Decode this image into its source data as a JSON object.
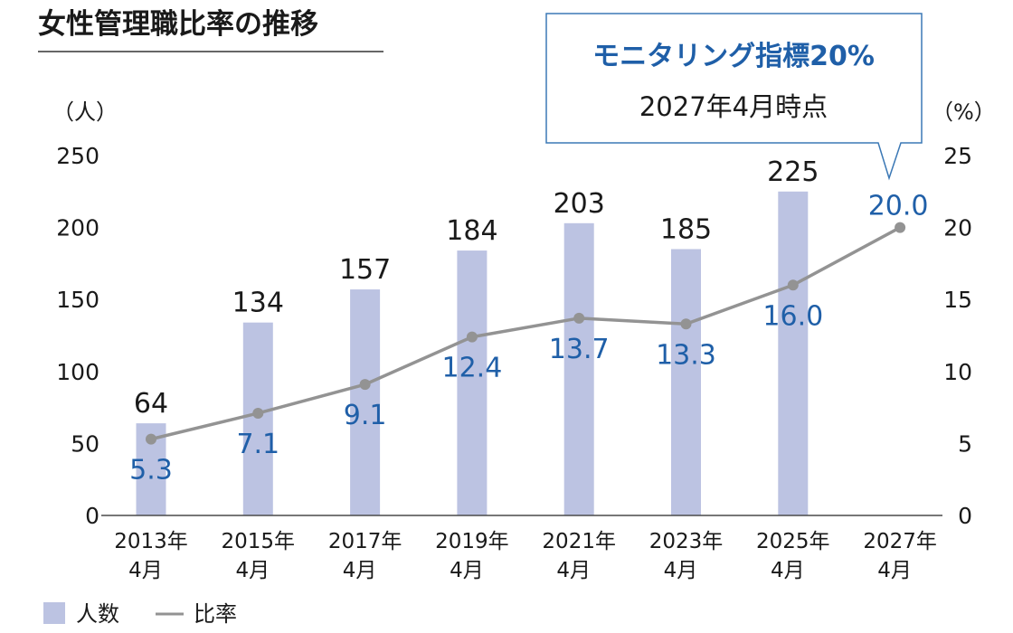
{
  "chart_data": {
    "type": "bar",
    "title": "女性管理職比率の推移",
    "categories": [
      [
        "2013年",
        "4月"
      ],
      [
        "2015年",
        "4月"
      ],
      [
        "2017年",
        "4月"
      ],
      [
        "2019年",
        "4月"
      ],
      [
        "2021年",
        "4月"
      ],
      [
        "2023年",
        "4月"
      ],
      [
        "2025年",
        "4月"
      ],
      [
        "2027年",
        "4月"
      ]
    ],
    "series": [
      {
        "name": "人数",
        "kind": "bar",
        "axis": "left",
        "color": "#bcc3e2",
        "values": [
          64,
          134,
          157,
          184,
          203,
          185,
          225,
          null
        ],
        "labels": [
          "64",
          "134",
          "157",
          "184",
          "203",
          "185",
          "225",
          ""
        ]
      },
      {
        "name": "比率",
        "kind": "line",
        "axis": "right",
        "color": "#939393",
        "label_color": "#1f5fa8",
        "values": [
          5.3,
          7.1,
          9.1,
          12.4,
          13.7,
          13.3,
          16.0,
          20.0
        ],
        "labels": [
          "5.3",
          "7.1",
          "9.1",
          "12.4",
          "13.7",
          "13.3",
          "16.0",
          "20.0"
        ]
      }
    ],
    "left_axis": {
      "unit": "（人）",
      "ylim": [
        0,
        250
      ],
      "ticks": [
        "0",
        "50",
        "100",
        "150",
        "200",
        "250"
      ]
    },
    "right_axis": {
      "unit": "（%）",
      "ylim": [
        0,
        25
      ],
      "ticks": [
        "0",
        "5",
        "10",
        "15",
        "20",
        "25"
      ]
    },
    "legend": {
      "position": "bottom-left",
      "bar_label": "人数",
      "line_label": "比率"
    },
    "annotation": {
      "title": "モニタリング指標20%",
      "subtitle": "2027年4月時点",
      "target": "20.0"
    }
  }
}
